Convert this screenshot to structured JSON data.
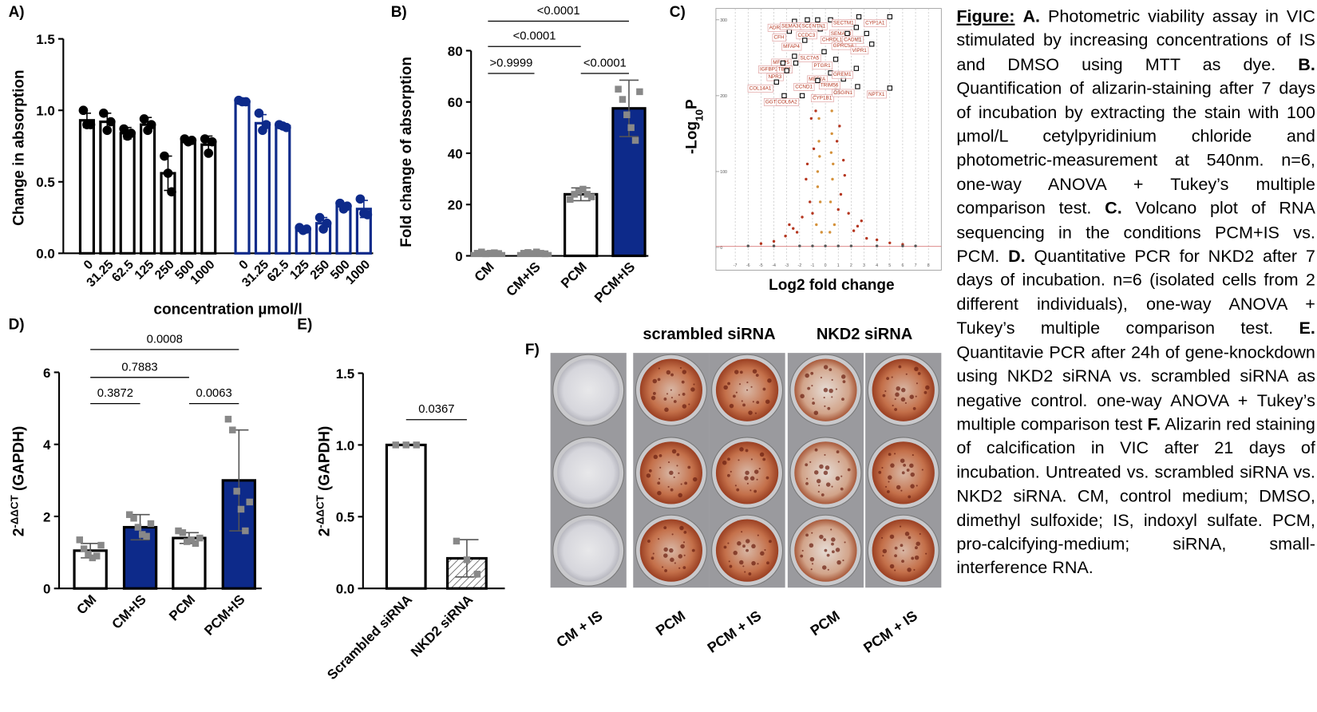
{
  "chart_data": [
    {
      "type": "bar",
      "panel_label": "A)",
      "ylabel": "Change in absorption",
      "xlabel": "concentration µmol/l",
      "ylim": [
        0,
        1.5
      ],
      "yticks": [
        {
          "value": 0,
          "label": "0.0"
        },
        0.5,
        {
          "value": 1,
          "label": "1.0"
        },
        1.5
      ],
      "categories": [
        "0",
        "31.25",
        "62.5",
        "125",
        "250",
        "500",
        "1000",
        "0",
        "31.25",
        "62.5",
        "125",
        "250",
        "500",
        "1000"
      ],
      "values": [
        0.93,
        0.92,
        0.84,
        0.9,
        0.56,
        0.79,
        0.76,
        1.06,
        0.91,
        0.89,
        0.17,
        0.21,
        0.33,
        0.31
      ],
      "errors": [
        0.05,
        0.06,
        0.04,
        0.05,
        0.12,
        0.02,
        0.06,
        0.01,
        0.06,
        0.01,
        0.01,
        0.04,
        0.02,
        0.06
      ],
      "points": [
        [
          1.0,
          0.9,
          0.9
        ],
        [
          0.98,
          0.86,
          0.92
        ],
        [
          0.87,
          0.82,
          0.84
        ],
        [
          0.94,
          0.86,
          0.9
        ],
        [
          0.68,
          0.56,
          0.43
        ],
        [
          0.8,
          0.78,
          0.79
        ],
        [
          0.8,
          0.7,
          0.78
        ],
        [
          1.07,
          1.06,
          1.06
        ],
        [
          0.98,
          0.86,
          0.9
        ],
        [
          0.9,
          0.89,
          0.88
        ],
        [
          0.18,
          0.16,
          0.17
        ],
        [
          0.25,
          0.17,
          0.21
        ],
        [
          0.35,
          0.31,
          0.33
        ],
        [
          0.38,
          0.28,
          0.27
        ]
      ],
      "fills": [
        "#ffffff",
        "#ffffff",
        "#ffffff",
        "#ffffff",
        "#ffffff",
        "#ffffff",
        "#ffffff",
        "#ffffff",
        "#ffffff",
        "#ffffff",
        "#ffffff",
        "#ffffff",
        "#ffffff",
        "#ffffff"
      ],
      "edges": [
        "#000000",
        "#000000",
        "#000000",
        "#000000",
        "#000000",
        "#000000",
        "#000000",
        "#0d2a8a",
        "#0d2a8a",
        "#0d2a8a",
        "#0d2a8a",
        "#0d2a8a",
        "#0d2a8a",
        "#0d2a8a"
      ],
      "marker": "circle"
    },
    {
      "type": "bar",
      "panel_label": "B)",
      "ylabel": "Fold change of absorption",
      "ylim": [
        0,
        80
      ],
      "yticks": [
        0,
        20,
        40,
        60,
        80
      ],
      "categories": [
        "CM",
        "CM+IS",
        "PCM",
        "PCM+IS"
      ],
      "values": [
        1,
        1,
        24,
        57.5
      ],
      "errors": [
        0.5,
        0.5,
        2.5,
        11
      ],
      "points": [
        [
          1,
          1.5,
          0.8,
          1,
          1.2,
          0.9
        ],
        [
          1,
          1.3,
          0.9,
          1.5,
          1,
          0.8
        ],
        [
          22,
          24,
          25,
          26,
          24,
          23
        ],
        [
          65,
          61,
          55,
          50,
          45,
          64
        ]
      ],
      "fills": [
        "#ffffff",
        "#ffffff",
        "#ffffff",
        "#0d2a8a"
      ],
      "edges": [
        "#888888",
        "#888888",
        "#000000",
        "#000000"
      ],
      "point_color": "#888888",
      "marker": "square",
      "brackets": [
        {
          "between": [
            0,
            1
          ],
          "label": ">0.9999"
        },
        {
          "between": [
            0,
            2
          ],
          "label": "<0.0001"
        },
        {
          "between": [
            2,
            3
          ],
          "label": "<0.0001"
        },
        {
          "between": [
            0,
            3
          ],
          "label": "<0.0001"
        }
      ]
    },
    {
      "type": "scatter",
      "panel_label": "C)",
      "xlabel": "Log2 fold change",
      "ylabel_parts": [
        {
          "text": "-Log"
        },
        {
          "text": "10",
          "shift": "sub"
        },
        {
          "text": "P"
        }
      ],
      "xlim": [
        -8.5,
        9
      ],
      "ylim": [
        -30,
        315
      ],
      "xticks": [
        -7,
        -6,
        -5,
        -4,
        -3,
        -2,
        -1,
        0,
        1,
        2,
        3,
        4,
        5,
        6,
        7,
        8
      ],
      "yticks": [
        0,
        100,
        200,
        300
      ],
      "hline": 1.3,
      "series": [
        {
          "color": "#d4913a",
          "x": [
            -0.5,
            -0.6,
            -0.4,
            -0.7,
            -0.5,
            -0.3,
            -0.6,
            -0.45,
            0.5,
            0.6,
            0.4,
            0.7,
            0.5,
            0.35,
            0.55,
            0.45
          ],
          "y": [
            140,
            100,
            60,
            30,
            170,
            20,
            80,
            120,
            150,
            110,
            60,
            30,
            180,
            20,
            90,
            125
          ]
        },
        {
          "color": "#b5361f",
          "x": [
            -1.2,
            -1.8,
            -2.5,
            -3.1,
            -1.5,
            -0.9,
            -2.2,
            -4,
            -1.1,
            -0.8,
            -1.4,
            -2.8,
            -5,
            -1.0,
            1.2,
            1.8,
            2.5,
            3.2,
            1.5,
            0.9,
            2.2,
            4,
            1.1,
            0.8,
            1.4,
            2.8,
            5,
            6,
            1.0,
            -0.75
          ],
          "y": [
            60,
            40,
            25,
            15,
            90,
            130,
            20,
            8,
            170,
            200,
            110,
            30,
            5,
            45,
            70,
            45,
            28,
            12,
            95,
            140,
            22,
            10,
            160,
            210,
            115,
            35,
            6,
            4,
            50,
            180
          ]
        },
        {
          "color": "#555555",
          "x": [
            -6,
            -4,
            -2,
            -1,
            0,
            1,
            2,
            4,
            6,
            7
          ],
          "y": [
            2,
            2,
            2,
            2,
            2,
            2,
            2,
            2,
            2,
            2
          ]
        }
      ],
      "genes": [
        {
          "label": "ADRA2A",
          "x": -2.4,
          "y": 298
        },
        {
          "label": "CFH",
          "x": -2.8,
          "y": 285
        },
        {
          "label": "SEMA3C",
          "x": -1.4,
          "y": 300
        },
        {
          "label": "SCD",
          "x": -0.6,
          "y": 300
        },
        {
          "label": "CCDC3",
          "x": -0.4,
          "y": 288
        },
        {
          "label": "MFAP4",
          "x": -1.6,
          "y": 273
        },
        {
          "label": "NTN1",
          "x": 0.4,
          "y": 300
        },
        {
          "label": "SECTM1",
          "x": 2.6,
          "y": 304
        },
        {
          "label": "SEMA6B",
          "x": 2.4,
          "y": 290
        },
        {
          "label": "CYP1A1",
          "x": 5,
          "y": 304
        },
        {
          "label": "CHRDL1",
          "x": 1.7,
          "y": 282
        },
        {
          "label": "GPRC5A",
          "x": 2.6,
          "y": 274
        },
        {
          "label": "CADM1",
          "x": 3.2,
          "y": 282
        },
        {
          "label": "VIPR1",
          "x": 3.6,
          "y": 268
        },
        {
          "label": "MFAP5",
          "x": -2.4,
          "y": 252
        },
        {
          "label": "IGFBP2",
          "x": -3.3,
          "y": 243
        },
        {
          "label": "TBP2",
          "x": -2.3,
          "y": 243
        },
        {
          "label": "SLC7A5",
          "x": -0.1,
          "y": 258
        },
        {
          "label": "PTGR1",
          "x": 0.8,
          "y": 248
        },
        {
          "label": "NPR3",
          "x": -3.0,
          "y": 233
        },
        {
          "label": "MEF2A",
          "x": 0.4,
          "y": 230
        },
        {
          "label": "TRIM56",
          "x": 1.4,
          "y": 222
        },
        {
          "label": "GREM1",
          "x": 2.4,
          "y": 236
        },
        {
          "label": "CCND1",
          "x": -0.6,
          "y": 220
        },
        {
          "label": "COL14A1",
          "x": -3.8,
          "y": 218
        },
        {
          "label": "GGT5",
          "x": -3.2,
          "y": 200
        },
        {
          "label": "COL6A2",
          "x": -1.8,
          "y": 200
        },
        {
          "label": "CYP1B1",
          "x": 0.9,
          "y": 205
        },
        {
          "label": "OSGIN1",
          "x": 2.5,
          "y": 212
        },
        {
          "label": "NPTX1",
          "x": 5,
          "y": 210
        }
      ]
    },
    {
      "type": "bar",
      "panel_label": "D)",
      "ylabel_parts": [
        {
          "text": "2"
        },
        {
          "text": "-ΔΔCT",
          "shift": "super"
        },
        {
          "text": " (GAPDH)"
        }
      ],
      "ylim": [
        0,
        6
      ],
      "yticks": [
        0,
        2,
        4,
        6
      ],
      "categories": [
        "CM",
        "CM+IS",
        "PCM",
        "PCM+IS"
      ],
      "values": [
        1.05,
        1.7,
        1.4,
        3.0
      ],
      "errors": [
        0.2,
        0.35,
        0.15,
        1.4
      ],
      "points": [
        [
          1.35,
          1.1,
          0.95,
          0.85,
          0.9,
          1.2
        ],
        [
          2.05,
          1.95,
          1.7,
          1.5,
          1.45,
          1.8
        ],
        [
          1.6,
          1.55,
          1.3,
          1.35,
          1.25,
          1.4
        ],
        [
          4.7,
          4.4,
          2.7,
          2.2,
          1.6,
          2.4
        ]
      ],
      "fills": [
        "#ffffff",
        "#0d2a8a",
        "#ffffff",
        "#0d2a8a"
      ],
      "edges": [
        "#000000",
        "#000000",
        "#000000",
        "#000000"
      ],
      "point_color": "#888888",
      "marker": "square",
      "brackets": [
        {
          "between": [
            0,
            1
          ],
          "label": "0.3872"
        },
        {
          "between": [
            0,
            2
          ],
          "label": "0.7883"
        },
        {
          "between": [
            2,
            3
          ],
          "label": "0.0063"
        },
        {
          "between": [
            0,
            3
          ],
          "label": "0.0008"
        }
      ]
    },
    {
      "type": "bar",
      "panel_label": "E)",
      "ylabel_parts": [
        {
          "text": "2"
        },
        {
          "text": "-ΔΔCT",
          "shift": "super"
        },
        {
          "text": " (GAPDH)"
        }
      ],
      "ylim": [
        0,
        1.5
      ],
      "yticks": [
        {
          "value": 0,
          "label": "0.0"
        },
        0.5,
        {
          "value": 1,
          "label": "1.0"
        },
        1.5
      ],
      "categories": [
        "Scrambled siRNA",
        "NKD2 siRNA"
      ],
      "values": [
        1.0,
        0.21
      ],
      "errors": [
        0,
        0.13
      ],
      "points": [
        [
          1,
          1,
          1
        ],
        [
          0.33,
          0.2,
          0.1
        ]
      ],
      "fills": [
        "#ffffff",
        "#ffffff"
      ],
      "edges": [
        "#000000",
        "#000000"
      ],
      "hatch": [
        false,
        true
      ],
      "point_color": "#888888",
      "marker": "square",
      "brackets": [
        {
          "between": [
            0,
            1
          ],
          "label": "0.0367"
        }
      ]
    }
  ],
  "photo_panel": {
    "panel_label": "F)",
    "group_headers": [
      "scrambled siRNA",
      "NKD2 siRNA"
    ],
    "columns": [
      "CM + IS",
      "PCM",
      "PCM + IS",
      "PCM",
      "PCM + IS"
    ]
  },
  "caption": [
    {
      "text": "Figure:",
      "bold": true,
      "underline": true
    },
    {
      "text": " "
    },
    {
      "text": "A.",
      "bold": true
    },
    {
      "text": " Photometric viability assay in VIC stimulated by increasing concentrations of IS and DMSO using MTT as dye. "
    },
    {
      "text": "B.",
      "bold": true
    },
    {
      "text": " Quantification of alizarin-staining after 7 days of incubation by extracting the stain with 100 µmol/L cetylpyridinium chloride and photometric-measurement at 540nm. n=6, one-way ANOVA + Tukey’s multiple comparison test. "
    },
    {
      "text": "C.",
      "bold": true
    },
    {
      "text": " Volcano plot of RNA sequencing in the conditions PCM+IS vs. PCM. "
    },
    {
      "text": "D.",
      "bold": true
    },
    {
      "text": " Quantitative PCR for NKD2 after 7 days of incubation. n=6 (isolated cells from 2 different individuals), one-way ANOVA + Tukey’s multiple comparison test. "
    },
    {
      "text": "E.",
      "bold": true
    },
    {
      "text": " Quantitavie PCR after 24h of gene-knockdown using NKD2 siRNA vs. scrambled siRNA as negative control. one-way ANOVA + Tukey’s multiple comparison test "
    },
    {
      "text": "F.",
      "bold": true
    },
    {
      "text": " Alizarin red staining of calcification in VIC after 21 days of incubation. Untreated vs. scrambled siRNA vs. NKD2 siRNA. CM, control medium; DMSO, dimethyl sulfoxide; IS, indoxyl sulfate. PCM, pro-calcifying-medium; siRNA, small-interference RNA."
    }
  ]
}
